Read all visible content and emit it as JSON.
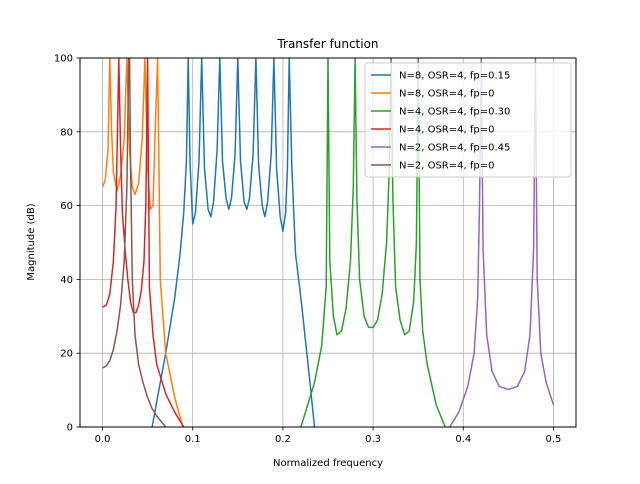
{
  "chart_data": {
    "type": "line",
    "title": "Transfer function",
    "xlabel": "Normalized frequency",
    "ylabel": "Magnitude (dB)",
    "xlim": [
      -0.025,
      0.525
    ],
    "ylim": [
      0,
      100
    ],
    "x_ticks": [
      "0.0",
      "0.1",
      "0.2",
      "0.3",
      "0.4",
      "0.5"
    ],
    "y_ticks": [
      "0",
      "20",
      "40",
      "60",
      "80",
      "100"
    ],
    "grid": true,
    "legend_position": "top-right",
    "series": [
      {
        "name": "N=8, OSR=4, fp=0.15",
        "color": "#1f77b4",
        "x": [
          0.055,
          0.07,
          0.08,
          0.086,
          0.09,
          0.093,
          0.095,
          0.097,
          0.1,
          0.103,
          0.107,
          0.11,
          0.113,
          0.117,
          0.12,
          0.123,
          0.127,
          0.13,
          0.133,
          0.137,
          0.14,
          0.143,
          0.147,
          0.15,
          0.153,
          0.157,
          0.16,
          0.163,
          0.167,
          0.17,
          0.173,
          0.177,
          0.18,
          0.183,
          0.187,
          0.19,
          0.193,
          0.197,
          0.2,
          0.203,
          0.205,
          0.207,
          0.21,
          0.214,
          0.22,
          0.23,
          0.235
        ],
        "y": [
          0,
          20,
          35,
          47,
          58,
          72,
          100,
          72,
          55,
          58,
          72,
          100,
          70,
          59,
          57,
          61,
          75,
          100,
          72,
          62,
          59,
          62,
          74,
          100,
          72,
          61,
          59,
          62,
          74,
          100,
          71,
          60,
          57,
          61,
          74,
          100,
          70,
          57,
          53,
          58,
          70,
          100,
          70,
          47,
          35,
          12,
          0
        ]
      },
      {
        "name": "N=8, OSR=4, fp=0",
        "color": "#ff7f0e",
        "x": [
          0.0,
          0.003,
          0.006,
          0.008,
          0.01,
          0.012,
          0.016,
          0.02,
          0.024,
          0.027,
          0.03,
          0.033,
          0.036,
          0.04,
          0.044,
          0.047,
          0.05,
          0.053,
          0.056,
          0.058,
          0.061,
          0.064,
          0.07,
          0.08,
          0.089
        ],
        "y": [
          65,
          67,
          75,
          100,
          80,
          69,
          64,
          68,
          78,
          100,
          75,
          65,
          63,
          66,
          78,
          100,
          70,
          59,
          60,
          78,
          100,
          40,
          20,
          8,
          0
        ]
      },
      {
        "name": "N=4, OSR=4, fp=0.30",
        "color": "#2ca02c",
        "x": [
          0.22,
          0.235,
          0.243,
          0.248,
          0.25,
          0.252,
          0.256,
          0.26,
          0.265,
          0.27,
          0.275,
          0.278,
          0.28,
          0.282,
          0.285,
          0.29,
          0.295,
          0.3,
          0.305,
          0.31,
          0.315,
          0.318,
          0.32,
          0.322,
          0.325,
          0.33,
          0.335,
          0.34,
          0.345,
          0.348,
          0.35,
          0.352,
          0.355,
          0.36,
          0.37,
          0.38
        ],
        "y": [
          0,
          12,
          22,
          38,
          100,
          45,
          30,
          25,
          26,
          32,
          45,
          65,
          100,
          62,
          40,
          30,
          27,
          27,
          29,
          36,
          50,
          70,
          100,
          62,
          38,
          29,
          25,
          26,
          34,
          50,
          100,
          40,
          26,
          17,
          6,
          0
        ]
      },
      {
        "name": "N=4, OSR=4, fp=0",
        "color": "#d62728",
        "x": [
          0.0,
          0.004,
          0.008,
          0.012,
          0.015,
          0.018,
          0.02,
          0.022,
          0.025,
          0.028,
          0.031,
          0.034,
          0.037,
          0.04,
          0.043,
          0.046,
          0.048,
          0.05,
          0.052,
          0.056,
          0.06,
          0.07,
          0.08,
          0.09
        ],
        "y": [
          32.5,
          33,
          36,
          45,
          60,
          100,
          75,
          58,
          48,
          40,
          34,
          31,
          31,
          33,
          37,
          45,
          60,
          100,
          38,
          25,
          17,
          9,
          4,
          0
        ]
      },
      {
        "name": "N=2, OSR=4, fp=0.45",
        "color": "#9467bd",
        "x": [
          0.385,
          0.395,
          0.405,
          0.412,
          0.416,
          0.418,
          0.42,
          0.422,
          0.426,
          0.432,
          0.44,
          0.45,
          0.46,
          0.468,
          0.474,
          0.478,
          0.48,
          0.482,
          0.486,
          0.492,
          0.5
        ],
        "y": [
          0,
          4,
          11,
          20,
          35,
          60,
          100,
          48,
          25,
          15,
          11,
          10.2,
          11,
          15,
          25,
          48,
          100,
          40,
          20,
          12,
          6
        ]
      },
      {
        "name": "N=2, OSR=4, fp=0",
        "color": "#8c564b",
        "x": [
          0.0,
          0.004,
          0.008,
          0.012,
          0.016,
          0.02,
          0.024,
          0.027,
          0.029,
          0.03,
          0.031,
          0.033,
          0.036,
          0.04,
          0.045,
          0.05,
          0.055,
          0.06,
          0.065,
          0.07
        ],
        "y": [
          16,
          16.5,
          18,
          21,
          26,
          33,
          45,
          65,
          100,
          100,
          72,
          40,
          25,
          17,
          12,
          8,
          5,
          3,
          1.5,
          0
        ]
      }
    ]
  }
}
